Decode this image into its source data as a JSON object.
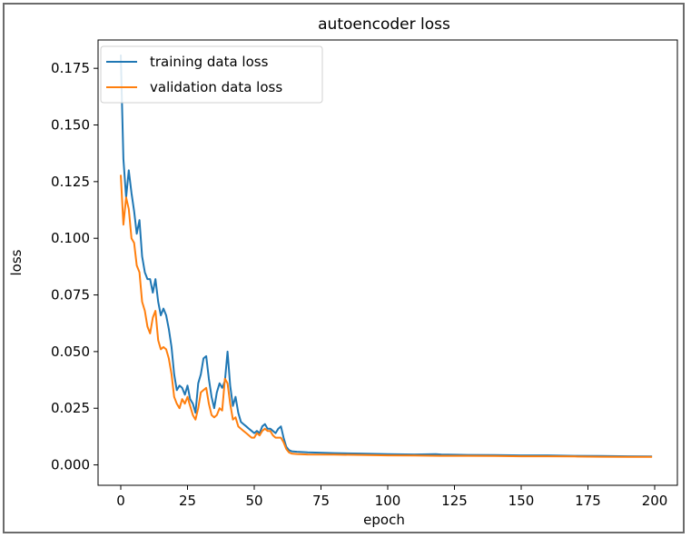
{
  "chart_data": {
    "type": "line",
    "title": "autoencoder loss",
    "xlabel": "epoch",
    "ylabel": "loss",
    "xlim": [
      -8.5,
      208.5
    ],
    "ylim": [
      -0.009,
      0.1875
    ],
    "xticks": [
      0,
      25,
      50,
      75,
      100,
      125,
      150,
      175,
      200
    ],
    "xtick_labels": [
      "0",
      "25",
      "50",
      "75",
      "100",
      "125",
      "150",
      "175",
      "200"
    ],
    "yticks": [
      0.0,
      0.025,
      0.05,
      0.075,
      0.1,
      0.125,
      0.15,
      0.175
    ],
    "ytick_labels": [
      "0.000",
      "0.025",
      "0.050",
      "0.075",
      "0.100",
      "0.125",
      "0.150",
      "0.175"
    ],
    "grid": false,
    "legend_position": "top-left",
    "series": [
      {
        "name": "training data loss",
        "color": "#1f77b4",
        "points": [
          [
            0,
            0.181
          ],
          [
            1,
            0.135
          ],
          [
            2,
            0.118
          ],
          [
            3,
            0.13
          ],
          [
            4,
            0.12
          ],
          [
            5,
            0.112
          ],
          [
            6,
            0.102
          ],
          [
            7,
            0.108
          ],
          [
            8,
            0.092
          ],
          [
            9,
            0.085
          ],
          [
            10,
            0.082
          ],
          [
            11,
            0.082
          ],
          [
            12,
            0.076
          ],
          [
            13,
            0.082
          ],
          [
            14,
            0.072
          ],
          [
            15,
            0.066
          ],
          [
            16,
            0.069
          ],
          [
            17,
            0.066
          ],
          [
            18,
            0.06
          ],
          [
            19,
            0.052
          ],
          [
            20,
            0.04
          ],
          [
            21,
            0.033
          ],
          [
            22,
            0.035
          ],
          [
            23,
            0.034
          ],
          [
            24,
            0.031
          ],
          [
            25,
            0.035
          ],
          [
            26,
            0.029
          ],
          [
            27,
            0.027
          ],
          [
            28,
            0.023
          ],
          [
            29,
            0.036
          ],
          [
            30,
            0.04
          ],
          [
            31,
            0.047
          ],
          [
            32,
            0.048
          ],
          [
            33,
            0.038
          ],
          [
            34,
            0.03
          ],
          [
            35,
            0.025
          ],
          [
            36,
            0.032
          ],
          [
            37,
            0.036
          ],
          [
            38,
            0.034
          ],
          [
            39,
            0.037
          ],
          [
            40,
            0.05
          ],
          [
            41,
            0.035
          ],
          [
            42,
            0.026
          ],
          [
            43,
            0.03
          ],
          [
            44,
            0.023
          ],
          [
            45,
            0.019
          ],
          [
            46,
            0.018
          ],
          [
            47,
            0.017
          ],
          [
            48,
            0.016
          ],
          [
            49,
            0.015
          ],
          [
            50,
            0.014
          ],
          [
            51,
            0.015
          ],
          [
            52,
            0.014
          ],
          [
            53,
            0.017
          ],
          [
            54,
            0.018
          ],
          [
            55,
            0.016
          ],
          [
            56,
            0.016
          ],
          [
            57,
            0.015
          ],
          [
            58,
            0.014
          ],
          [
            59,
            0.016
          ],
          [
            60,
            0.017
          ],
          [
            61,
            0.012
          ],
          [
            62,
            0.008
          ],
          [
            63,
            0.0065
          ],
          [
            64,
            0.006
          ],
          [
            66,
            0.0058
          ],
          [
            70,
            0.0055
          ],
          [
            80,
            0.0052
          ],
          [
            90,
            0.005
          ],
          [
            100,
            0.0047
          ],
          [
            110,
            0.0046
          ],
          [
            118,
            0.0047
          ],
          [
            120,
            0.0046
          ],
          [
            130,
            0.0044
          ],
          [
            140,
            0.0043
          ],
          [
            150,
            0.0042
          ],
          [
            160,
            0.0042
          ],
          [
            170,
            0.004
          ],
          [
            180,
            0.0039
          ],
          [
            190,
            0.0038
          ],
          [
            199,
            0.0037
          ]
        ]
      },
      {
        "name": "validation data loss",
        "color": "#ff7f0e",
        "points": [
          [
            0,
            0.128
          ],
          [
            1,
            0.106
          ],
          [
            2,
            0.118
          ],
          [
            3,
            0.113
          ],
          [
            4,
            0.1
          ],
          [
            5,
            0.098
          ],
          [
            6,
            0.088
          ],
          [
            7,
            0.085
          ],
          [
            8,
            0.072
          ],
          [
            9,
            0.068
          ],
          [
            10,
            0.061
          ],
          [
            11,
            0.058
          ],
          [
            12,
            0.065
          ],
          [
            13,
            0.068
          ],
          [
            14,
            0.055
          ],
          [
            15,
            0.051
          ],
          [
            16,
            0.052
          ],
          [
            17,
            0.051
          ],
          [
            18,
            0.047
          ],
          [
            19,
            0.04
          ],
          [
            20,
            0.03
          ],
          [
            21,
            0.027
          ],
          [
            22,
            0.025
          ],
          [
            23,
            0.029
          ],
          [
            24,
            0.027
          ],
          [
            25,
            0.03
          ],
          [
            26,
            0.026
          ],
          [
            27,
            0.022
          ],
          [
            28,
            0.02
          ],
          [
            29,
            0.025
          ],
          [
            30,
            0.032
          ],
          [
            31,
            0.033
          ],
          [
            32,
            0.034
          ],
          [
            33,
            0.027
          ],
          [
            34,
            0.022
          ],
          [
            35,
            0.021
          ],
          [
            36,
            0.022
          ],
          [
            37,
            0.025
          ],
          [
            38,
            0.024
          ],
          [
            39,
            0.038
          ],
          [
            40,
            0.036
          ],
          [
            41,
            0.027
          ],
          [
            42,
            0.02
          ],
          [
            43,
            0.021
          ],
          [
            44,
            0.017
          ],
          [
            45,
            0.016
          ],
          [
            46,
            0.015
          ],
          [
            47,
            0.014
          ],
          [
            48,
            0.013
          ],
          [
            49,
            0.012
          ],
          [
            50,
            0.012
          ],
          [
            51,
            0.014
          ],
          [
            52,
            0.013
          ],
          [
            53,
            0.015
          ],
          [
            54,
            0.016
          ],
          [
            55,
            0.015
          ],
          [
            56,
            0.015
          ],
          [
            57,
            0.013
          ],
          [
            58,
            0.012
          ],
          [
            59,
            0.012
          ],
          [
            60,
            0.012
          ],
          [
            61,
            0.01
          ],
          [
            62,
            0.007
          ],
          [
            63,
            0.0055
          ],
          [
            64,
            0.005
          ],
          [
            66,
            0.0048
          ],
          [
            70,
            0.0046
          ],
          [
            80,
            0.0045
          ],
          [
            90,
            0.0044
          ],
          [
            100,
            0.0042
          ],
          [
            110,
            0.0041
          ],
          [
            120,
            0.004
          ],
          [
            130,
            0.004
          ],
          [
            140,
            0.0039
          ],
          [
            150,
            0.0038
          ],
          [
            160,
            0.0038
          ],
          [
            170,
            0.0037
          ],
          [
            180,
            0.0036
          ],
          [
            190,
            0.0035
          ],
          [
            199,
            0.0035
          ]
        ]
      }
    ]
  }
}
